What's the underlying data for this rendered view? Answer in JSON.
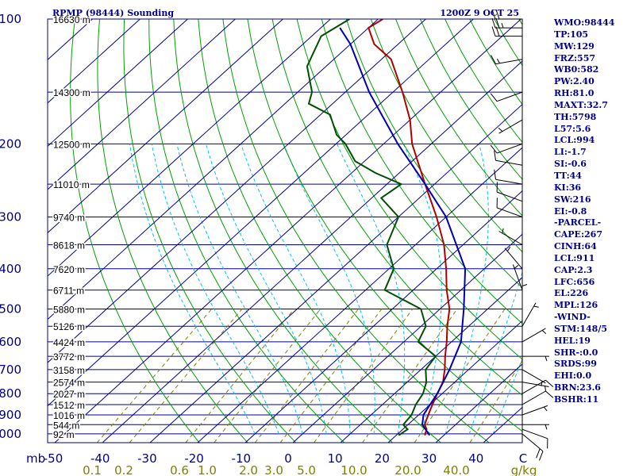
{
  "header": {
    "station": "RPMP (98444) Sounding",
    "valid_time": "1200Z  9 OCT 25"
  },
  "stats": [
    "WMO:98444",
    "TP:105",
    "MW:129",
    "FRZ:557",
    "WB0:582",
    "PW:2.40",
    "RH:81.0",
    "MAXT:32.7",
    "TH:5798",
    "L57:5.6",
    "LCL:994",
    "LI:-1.7",
    "SI:-0.6",
    "TT:44",
    "KI:36",
    "SW:216",
    "EI:-0.8",
    "-PARCEL-",
    "CAPE:267",
    "CINH:64",
    "LCL:911",
    "CAP:2.3",
    "LFC:656",
    "EL:226",
    "MPL:126",
    "-WIND-",
    "STM:148/5",
    "HEL:19",
    "SHR-:0.0",
    "SRDS:99",
    "EHI:0.0",
    "BRN:23.6",
    "BSHR:11"
  ],
  "colors": {
    "frame": "#00008b",
    "isotherm": "#00a000",
    "dry_adiabat": "#00a000",
    "mixing_ratio": "#808000",
    "moist_adiabat": "#00bfff",
    "temperature": "#b00000",
    "dewpoint": "#005000",
    "parcel": "#0000b0"
  },
  "chart_data": {
    "type": "skew-t",
    "title": "RPMP (98444) Sounding",
    "pressure_unit": "mb",
    "temp_unit": "C",
    "pressure_levels": [
      100,
      200,
      300,
      400,
      500,
      600,
      700,
      800,
      900,
      1000
    ],
    "temp_ticks": [
      -50,
      -40,
      -30,
      -20,
      -10,
      0,
      10,
      20,
      30,
      40
    ],
    "temp_tick_labels": [
      "-50",
      "-40",
      "-30",
      "-20",
      "-10",
      "0",
      "10",
      "20",
      "30",
      "40",
      "C"
    ],
    "mixing_ratio_labels": [
      "0.1",
      "0.2",
      "0.6",
      "1.0",
      "2.0",
      "3.0",
      "5.0",
      "10.0",
      "20.0",
      "40.0",
      "g/kg"
    ],
    "height_labels": [
      {
        "p": 100,
        "label": "16630 m"
      },
      {
        "p": 150,
        "label": "14300 m"
      },
      {
        "p": 200,
        "label": "12500 m"
      },
      {
        "p": 250,
        "label": "11010 m"
      },
      {
        "p": 300,
        "label": "9740 m"
      },
      {
        "p": 350,
        "label": "8618 m"
      },
      {
        "p": 400,
        "label": "7620 m"
      },
      {
        "p": 450,
        "label": "6711 m"
      },
      {
        "p": 500,
        "label": "5880 m"
      },
      {
        "p": 550,
        "label": "5126 m"
      },
      {
        "p": 600,
        "label": "4424 m"
      },
      {
        "p": 650,
        "label": "3772 m"
      },
      {
        "p": 700,
        "label": "3158 m"
      },
      {
        "p": 750,
        "label": "2574 m"
      },
      {
        "p": 800,
        "label": "2027 m"
      },
      {
        "p": 850,
        "label": "1512 m"
      },
      {
        "p": 900,
        "label": "1016 m"
      },
      {
        "p": 950,
        "label": "544 m"
      },
      {
        "p": 1000,
        "label": "92 m"
      }
    ],
    "series": [
      {
        "name": "temperature",
        "points": [
          [
            1008,
            26
          ],
          [
            975,
            25
          ],
          [
            950,
            23.5
          ],
          [
            900,
            22
          ],
          [
            850,
            20.5
          ],
          [
            800,
            19
          ],
          [
            750,
            17.5
          ],
          [
            700,
            15
          ],
          [
            650,
            12
          ],
          [
            600,
            9
          ],
          [
            550,
            5.5
          ],
          [
            500,
            2
          ],
          [
            450,
            -3
          ],
          [
            400,
            -8
          ],
          [
            350,
            -14
          ],
          [
            300,
            -22
          ],
          [
            250,
            -32
          ],
          [
            200,
            -44
          ],
          [
            175,
            -50
          ],
          [
            150,
            -58
          ],
          [
            125,
            -68
          ],
          [
            115,
            -75
          ],
          [
            105,
            -80
          ],
          [
            100,
            -79
          ]
        ]
      },
      {
        "name": "dewpoint",
        "points": [
          [
            1008,
            20.5
          ],
          [
            975,
            21
          ],
          [
            950,
            19
          ],
          [
            900,
            18.5
          ],
          [
            850,
            17
          ],
          [
            800,
            16
          ],
          [
            750,
            14
          ],
          [
            700,
            11
          ],
          [
            650,
            10
          ],
          [
            600,
            3
          ],
          [
            550,
            1
          ],
          [
            500,
            -4
          ],
          [
            450,
            -16
          ],
          [
            400,
            -19
          ],
          [
            350,
            -26
          ],
          [
            300,
            -30
          ],
          [
            270,
            -38
          ],
          [
            250,
            -37
          ],
          [
            235,
            -45
          ],
          [
            220,
            -52
          ],
          [
            200,
            -58
          ],
          [
            190,
            -62
          ],
          [
            170,
            -68
          ],
          [
            160,
            -75
          ],
          [
            150,
            -77
          ],
          [
            130,
            -84
          ],
          [
            110,
            -88
          ],
          [
            100,
            -86
          ]
        ]
      },
      {
        "name": "parcel",
        "points": [
          [
            1008,
            27
          ],
          [
            950,
            23
          ],
          [
            900,
            21
          ],
          [
            850,
            20
          ],
          [
            800,
            19
          ],
          [
            700,
            16
          ],
          [
            600,
            12
          ],
          [
            500,
            5
          ],
          [
            400,
            -4
          ],
          [
            300,
            -20
          ],
          [
            250,
            -32
          ],
          [
            200,
            -47
          ],
          [
            150,
            -65
          ],
          [
            115,
            -80
          ],
          [
            105,
            -86
          ]
        ]
      }
    ],
    "wind_barbs": [
      [
        1000,
        130,
        20
      ],
      [
        975,
        110,
        10
      ],
      [
        950,
        90,
        5
      ],
      [
        900,
        70,
        5
      ],
      [
        850,
        60,
        10
      ],
      [
        800,
        60,
        10
      ],
      [
        750,
        100,
        5
      ],
      [
        700,
        120,
        5
      ],
      [
        650,
        90,
        5
      ],
      [
        600,
        60,
        5
      ],
      [
        550,
        30,
        5
      ],
      [
        500,
        0,
        5
      ],
      [
        450,
        340,
        5
      ],
      [
        400,
        320,
        5
      ],
      [
        350,
        300,
        5
      ],
      [
        300,
        290,
        10
      ],
      [
        275,
        290,
        10
      ],
      [
        250,
        280,
        10
      ],
      [
        225,
        280,
        10
      ],
      [
        200,
        250,
        10
      ],
      [
        175,
        240,
        5
      ],
      [
        150,
        250,
        10
      ],
      [
        125,
        260,
        15
      ],
      [
        110,
        270,
        20
      ],
      [
        105,
        270,
        25
      ],
      [
        100,
        270,
        20
      ]
    ]
  }
}
